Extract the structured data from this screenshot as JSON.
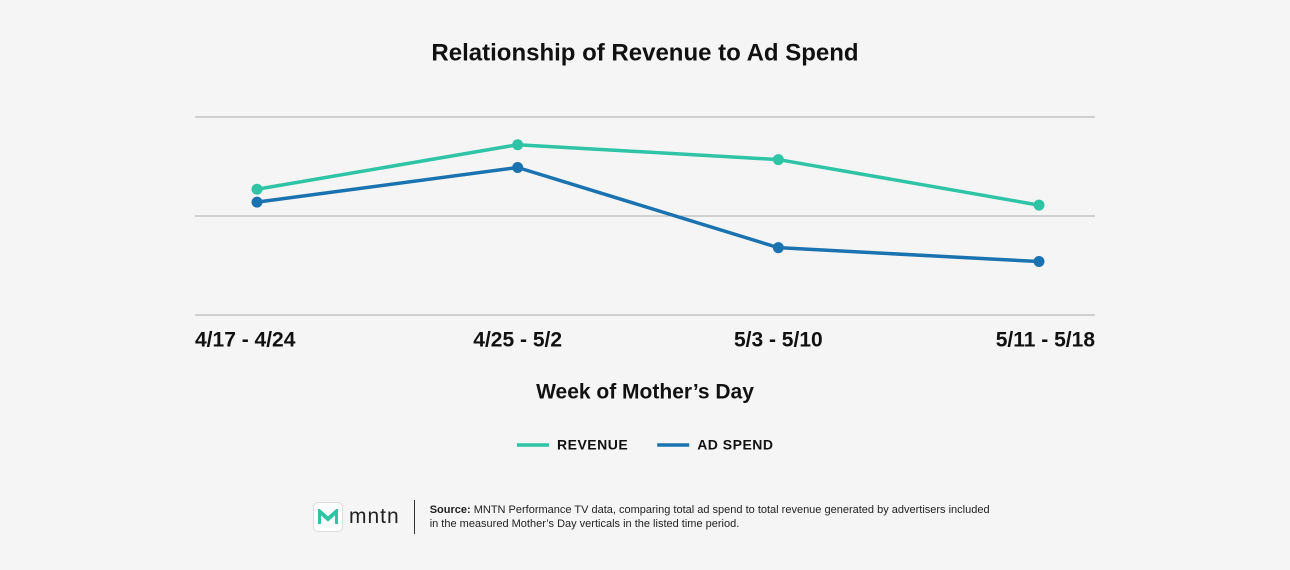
{
  "chart_data": {
    "type": "line",
    "title": "Relationship of Revenue to Ad Spend",
    "x_label": "Week of Mother’s Day",
    "categories": [
      "4/17 - 4/24",
      "4/25 - 5/2",
      "5/3 - 5/10",
      "5/11 - 5/18"
    ],
    "series": [
      {
        "name": "REVENUE",
        "color": "#2ec4a5",
        "values": [
          1.27,
          1.72,
          1.57,
          1.11
        ]
      },
      {
        "name": "AD SPEND",
        "color": "#1a73b0",
        "values": [
          1.14,
          1.49,
          0.68,
          0.54
        ]
      }
    ],
    "ylim": [
      0,
      2
    ],
    "yticks": [
      0,
      1,
      2
    ],
    "grid": true,
    "legend": "bottom"
  },
  "footer": {
    "logo": "mntn",
    "source_label": "Source:",
    "source_text": "MNTN Performance TV data, comparing total ad spend to total revenue generated by advertisers included in the measured Mother’s Day verticals in the listed time period."
  }
}
